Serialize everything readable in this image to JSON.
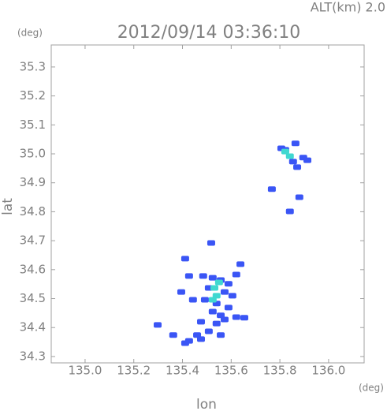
{
  "chart_data": {
    "type": "scatter",
    "title": "2012/09/14 03:36:10",
    "annotation": "ALT(km) 2.0",
    "y_unit": "(deg)",
    "x_unit": "(deg)",
    "xlabel": "lon",
    "ylabel": "lat",
    "xlim": [
      134.861,
      136.146
    ],
    "ylim": [
      34.278,
      35.376
    ],
    "xticks": [
      {
        "value": 135.0,
        "label": "135.0"
      },
      135.2,
      135.4,
      135.6,
      135.8,
      {
        "value": 136.0,
        "label": "136.0"
      }
    ],
    "yticks": [
      35.3,
      35.2,
      35.1,
      {
        "value": 35.0,
        "label": "35.0"
      },
      34.9,
      34.8,
      34.7,
      34.6,
      34.5,
      34.4,
      34.3
    ],
    "series": [
      {
        "color": "#3a55f5",
        "x": [
          135.524,
          135.557,
          135.589,
          135.508,
          135.573,
          135.605,
          135.492,
          135.54,
          135.589,
          135.524,
          135.557,
          135.476,
          135.573,
          135.621,
          135.654,
          135.54,
          135.508,
          135.557,
          135.46,
          135.427,
          135.476,
          135.411,
          135.443,
          135.621,
          135.638,
          135.427,
          135.395,
          135.362,
          135.298,
          135.411,
          135.518,
          135.485,
          135.806,
          135.822,
          135.854,
          135.871,
          135.896,
          135.913,
          135.864,
          135.767,
          135.88,
          135.841
        ],
        "y": [
          34.572,
          34.564,
          34.551,
          34.537,
          34.523,
          34.51,
          34.496,
          34.483,
          34.469,
          34.455,
          34.442,
          34.42,
          34.428,
          34.436,
          34.434,
          34.414,
          34.387,
          34.374,
          34.374,
          34.354,
          34.36,
          34.346,
          34.496,
          34.583,
          34.619,
          34.578,
          34.523,
          34.374,
          34.409,
          34.638,
          34.692,
          34.578,
          35.019,
          35.014,
          34.973,
          34.954,
          34.987,
          34.978,
          35.036,
          34.878,
          34.85,
          34.801
        ]
      },
      {
        "color": "#40d8d0",
        "x": [
          135.531,
          135.54,
          135.524,
          135.55,
          135.841,
          135.822
        ],
        "y": [
          34.537,
          34.51,
          34.496,
          34.556,
          34.992,
          35.008
        ]
      }
    ]
  }
}
